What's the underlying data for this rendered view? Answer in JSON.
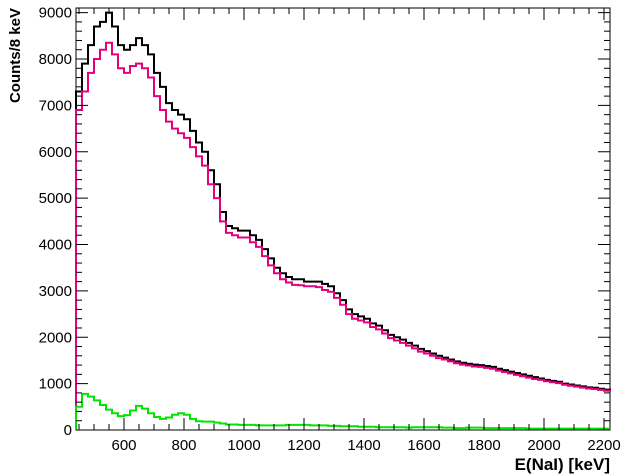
{
  "chart_data": {
    "type": "line",
    "style": "step-histogram",
    "title": "",
    "xlabel": "E(NaI) [keV]",
    "ylabel": "Counts/8 keV",
    "xlim": [
      440,
      2220
    ],
    "ylim": [
      0,
      9100
    ],
    "x_ticks": [
      600,
      800,
      1000,
      1200,
      1400,
      1600,
      1800,
      2000,
      2200
    ],
    "y_ticks": [
      0,
      1000,
      2000,
      3000,
      4000,
      5000,
      6000,
      7000,
      8000,
      9000
    ],
    "x_tick_labels": [
      "600",
      "800",
      "1000",
      "1200",
      "1400",
      "1600",
      "1800",
      "2000",
      "2200"
    ],
    "y_tick_labels": [
      "0",
      "1000",
      "2000",
      "3000",
      "4000",
      "5000",
      "6000",
      "7000",
      "8000",
      "9000"
    ],
    "grid": false,
    "legend": "none",
    "series": [
      {
        "color": "#000000",
        "x": [
          440,
          460,
          480,
          500,
          520,
          540,
          560,
          580,
          600,
          620,
          640,
          660,
          680,
          700,
          720,
          740,
          760,
          780,
          800,
          820,
          840,
          860,
          880,
          900,
          920,
          940,
          960,
          980,
          1000,
          1020,
          1040,
          1060,
          1080,
          1100,
          1120,
          1140,
          1160,
          1180,
          1200,
          1220,
          1240,
          1260,
          1280,
          1300,
          1320,
          1340,
          1360,
          1380,
          1400,
          1420,
          1440,
          1460,
          1480,
          1500,
          1520,
          1540,
          1560,
          1580,
          1600,
          1620,
          1640,
          1660,
          1680,
          1700,
          1720,
          1740,
          1760,
          1780,
          1800,
          1820,
          1840,
          1860,
          1880,
          1900,
          1920,
          1940,
          1960,
          1980,
          2000,
          2020,
          2040,
          2060,
          2080,
          2100,
          2120,
          2140,
          2160,
          2180,
          2200,
          2220
        ],
        "values": [
          7300,
          7900,
          8300,
          8700,
          8800,
          9000,
          8700,
          8300,
          8200,
          8300,
          8450,
          8300,
          8100,
          7700,
          7400,
          7050,
          6900,
          6800,
          6700,
          6450,
          6200,
          6000,
          5600,
          5300,
          4700,
          4400,
          4350,
          4300,
          4300,
          4200,
          4100,
          3900,
          3700,
          3500,
          3380,
          3300,
          3250,
          3250,
          3200,
          3200,
          3200,
          3150,
          3100,
          2950,
          2800,
          2600,
          2500,
          2450,
          2400,
          2300,
          2250,
          2150,
          2050,
          2000,
          1950,
          1880,
          1820,
          1750,
          1700,
          1650,
          1600,
          1560,
          1520,
          1480,
          1450,
          1430,
          1410,
          1400,
          1380,
          1360,
          1320,
          1290,
          1260,
          1230,
          1200,
          1170,
          1140,
          1110,
          1080,
          1060,
          1040,
          1000,
          980,
          960,
          940,
          920,
          910,
          890,
          870,
          850
        ]
      },
      {
        "color": "#e6007e",
        "x": [
          440,
          460,
          480,
          500,
          520,
          540,
          560,
          580,
          600,
          620,
          640,
          660,
          680,
          700,
          720,
          740,
          760,
          780,
          800,
          820,
          840,
          860,
          880,
          900,
          920,
          940,
          960,
          980,
          1000,
          1020,
          1040,
          1060,
          1080,
          1100,
          1120,
          1140,
          1160,
          1180,
          1200,
          1220,
          1240,
          1260,
          1280,
          1300,
          1320,
          1340,
          1360,
          1380,
          1400,
          1420,
          1440,
          1460,
          1480,
          1500,
          1520,
          1540,
          1560,
          1580,
          1600,
          1620,
          1640,
          1660,
          1680,
          1700,
          1720,
          1740,
          1760,
          1780,
          1800,
          1820,
          1840,
          1860,
          1880,
          1900,
          1920,
          1940,
          1960,
          1980,
          2000,
          2020,
          2040,
          2060,
          2080,
          2100,
          2120,
          2140,
          2160,
          2180,
          2200,
          2220
        ],
        "values": [
          6900,
          7300,
          7700,
          8000,
          8200,
          8350,
          8100,
          7800,
          7700,
          7850,
          7900,
          7800,
          7600,
          7200,
          6900,
          6650,
          6500,
          6400,
          6300,
          6100,
          5900,
          5700,
          5300,
          5000,
          4500,
          4250,
          4200,
          4150,
          4150,
          4050,
          3950,
          3750,
          3550,
          3380,
          3250,
          3180,
          3130,
          3120,
          3100,
          3100,
          3080,
          3020,
          2980,
          2850,
          2700,
          2500,
          2400,
          2360,
          2320,
          2220,
          2170,
          2080,
          1980,
          1930,
          1880,
          1820,
          1760,
          1690,
          1650,
          1600,
          1550,
          1520,
          1480,
          1440,
          1410,
          1390,
          1370,
          1360,
          1340,
          1320,
          1280,
          1250,
          1220,
          1190,
          1160,
          1130,
          1100,
          1080,
          1050,
          1030,
          1010,
          975,
          955,
          935,
          915,
          895,
          885,
          865,
          845,
          825
        ]
      },
      {
        "color": "#00e600",
        "x": [
          440,
          460,
          480,
          500,
          520,
          540,
          560,
          580,
          600,
          620,
          640,
          660,
          680,
          700,
          720,
          740,
          760,
          780,
          800,
          820,
          840,
          860,
          880,
          900,
          920,
          940,
          960,
          980,
          1000,
          1020,
          1040,
          1060,
          1080,
          1100,
          1120,
          1140,
          1160,
          1180,
          1200,
          1220,
          1240,
          1260,
          1280,
          1300,
          1320,
          1340,
          1360,
          1380,
          1400,
          1420,
          1440,
          1460,
          1480,
          1500,
          1520,
          1540,
          1560,
          1580,
          1600,
          1620,
          1640,
          1660,
          1680,
          1700,
          1720,
          1740,
          1760,
          1780,
          1800,
          1820,
          1840,
          1860,
          1880,
          1900,
          1920,
          1940,
          1960,
          1980,
          2000,
          2020,
          2040,
          2060,
          2080,
          2100,
          2120,
          2140,
          2160,
          2180,
          2200,
          2220
        ],
        "values": [
          500,
          780,
          720,
          640,
          540,
          440,
          360,
          300,
          320,
          420,
          520,
          460,
          360,
          280,
          240,
          270,
          330,
          360,
          330,
          240,
          190,
          180,
          180,
          160,
          140,
          120,
          120,
          110,
          110,
          110,
          100,
          100,
          100,
          100,
          100,
          110,
          110,
          110,
          110,
          100,
          100,
          100,
          90,
          90,
          80,
          80,
          80,
          70,
          70,
          70,
          60,
          60,
          60,
          60,
          60,
          50,
          60,
          60,
          60,
          60,
          60,
          50,
          50,
          40,
          40,
          50,
          50,
          50,
          40,
          40,
          40,
          40,
          40,
          40,
          40,
          30,
          30,
          30,
          30,
          30,
          30,
          30,
          30,
          30,
          30,
          30,
          30,
          30,
          30,
          30
        ]
      }
    ]
  }
}
